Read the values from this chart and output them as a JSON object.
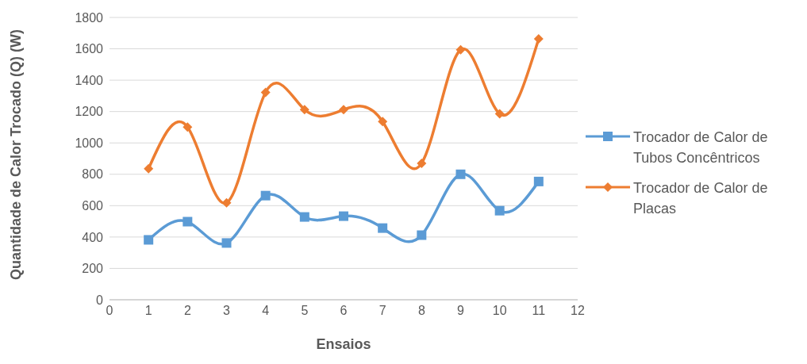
{
  "chart_data": {
    "type": "line",
    "xlabel": "Ensaios",
    "ylabel": "Quantidade de Calor Trocado (Q) (W)",
    "x": [
      1,
      2,
      3,
      4,
      5,
      6,
      7,
      8,
      9,
      10,
      11
    ],
    "xlim": [
      0,
      12
    ],
    "xticks": [
      0,
      1,
      2,
      3,
      4,
      5,
      6,
      7,
      8,
      9,
      10,
      11,
      12
    ],
    "ylim": [
      0,
      1800
    ],
    "yticks": [
      0,
      200,
      400,
      600,
      800,
      1000,
      1200,
      1400,
      1600,
      1800
    ],
    "grid": "y",
    "legend": "right",
    "series": [
      {
        "name": "Trocador de Calor de Tubos Concêntricos",
        "color": "#5b9bd5",
        "marker": "square",
        "values": [
          382,
          498,
          362,
          664,
          528,
          533,
          457,
          412,
          800,
          568,
          754
        ]
      },
      {
        "name": "Trocador de Calor de Placas",
        "color": "#ed7d31",
        "marker": "diamond",
        "values": [
          835,
          1101,
          618,
          1322,
          1212,
          1212,
          1136,
          870,
          1594,
          1186,
          1664
        ]
      }
    ]
  }
}
